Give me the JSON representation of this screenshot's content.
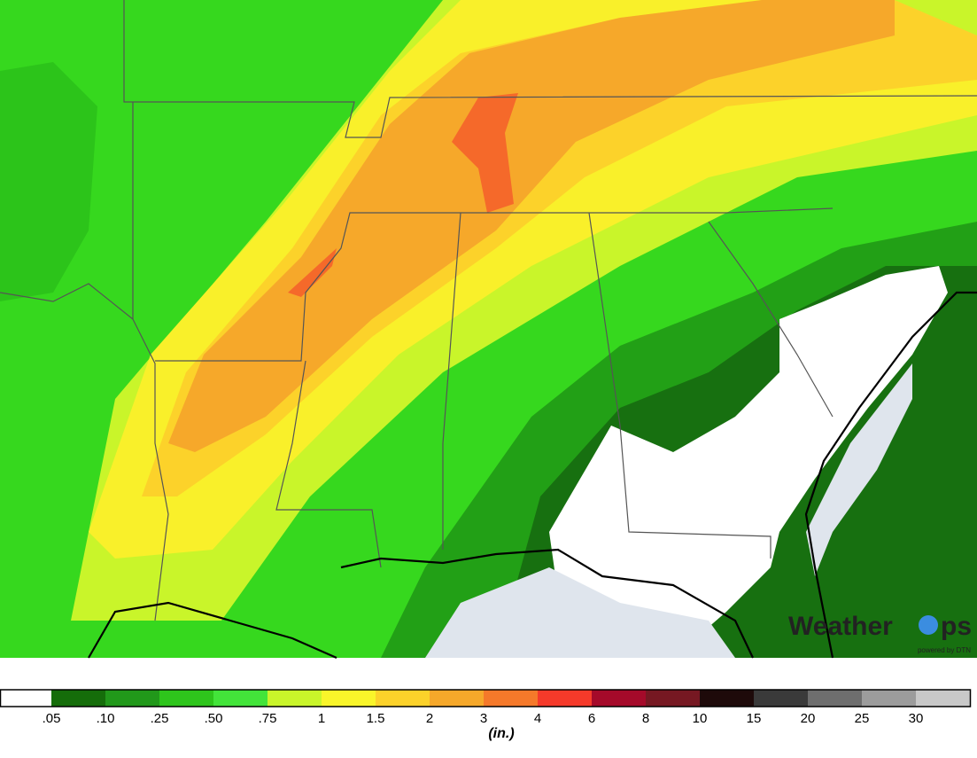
{
  "legend": {
    "colors": [
      "#ffffff",
      "#156d0a",
      "#21981a",
      "#2ec51c",
      "#43e43a",
      "#c9f52a",
      "#f9f52a",
      "#fcd22a",
      "#f6a82a",
      "#f5792a",
      "#f53a2a",
      "#a50a2a",
      "#761822",
      "#1e0a0a",
      "#3a3a3a",
      "#6e6e6e",
      "#9c9c9c",
      "#c8c8c8"
    ],
    "labels": [
      ".05",
      ".10",
      ".25",
      ".50",
      ".75",
      "1",
      "1.5",
      "2",
      "3",
      "4",
      "6",
      "8",
      "10",
      "15",
      "20",
      "25",
      "30"
    ],
    "unit": "(in.)"
  },
  "logo": {
    "brand_start": "Weather",
    "brand_end": "ps",
    "tagline": "powered by DTN"
  }
}
